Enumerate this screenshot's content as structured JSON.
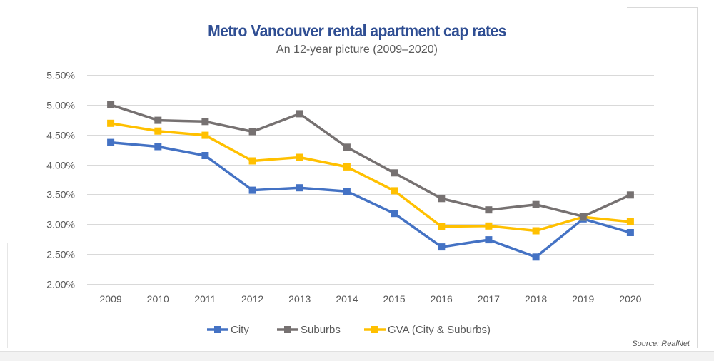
{
  "chart_data": {
    "type": "line",
    "title": "Metro Vancouver rental apartment cap rates",
    "subtitle": "An 12-year picture (2009–2020)",
    "xlabel": "",
    "ylabel": "",
    "categories": [
      "2009",
      "2010",
      "2011",
      "2012",
      "2013",
      "2014",
      "2015",
      "2016",
      "2017",
      "2018",
      "2019",
      "2020"
    ],
    "ylim": [
      0.02,
      0.055
    ],
    "yticks": [
      0.02,
      0.025,
      0.03,
      0.035,
      0.04,
      0.045,
      0.05,
      0.055
    ],
    "ytick_labels": [
      "2.00%",
      "2.50%",
      "3.00%",
      "3.50%",
      "4.00%",
      "4.50%",
      "5.00%",
      "5.50%"
    ],
    "grid": true,
    "legend_position": "bottom",
    "series": [
      {
        "name": "City",
        "color": "#4472c4",
        "values": [
          0.0437,
          0.043,
          0.0415,
          0.0357,
          0.0361,
          0.0355,
          0.0318,
          0.0262,
          0.0274,
          0.0245,
          0.0309,
          0.0286
        ]
      },
      {
        "name": "Suburbs",
        "color": "#767171",
        "values": [
          0.05,
          0.0474,
          0.0472,
          0.0455,
          0.0485,
          0.0429,
          0.0386,
          0.0343,
          0.0324,
          0.0333,
          0.0313,
          0.0349
        ]
      },
      {
        "name": "GVA (City & Suburbs)",
        "color": "#ffc000",
        "values": [
          0.0469,
          0.0456,
          0.0449,
          0.0406,
          0.0412,
          0.0396,
          0.0356,
          0.0296,
          0.0297,
          0.0289,
          0.0312,
          0.0304
        ]
      }
    ],
    "source": "Source: RealNet"
  }
}
